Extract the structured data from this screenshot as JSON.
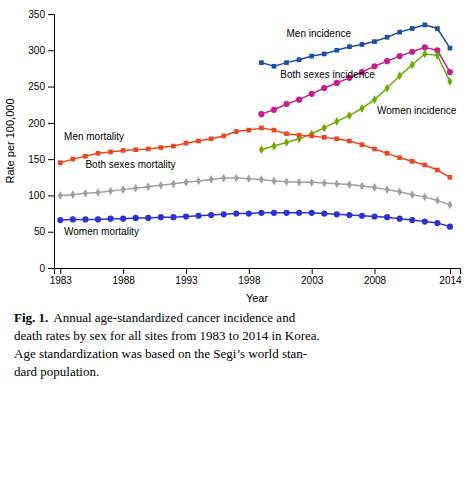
{
  "chart_data": {
    "type": "line",
    "x_label": "Year",
    "y_label": "Rate per 100,000",
    "x": [
      1983,
      1984,
      1985,
      1986,
      1987,
      1988,
      1989,
      1990,
      1991,
      1992,
      1993,
      1994,
      1995,
      1996,
      1997,
      1998,
      1999,
      2000,
      2001,
      2002,
      2003,
      2004,
      2005,
      2006,
      2007,
      2008,
      2009,
      2010,
      2011,
      2012,
      2013,
      2014
    ],
    "series": [
      {
        "color": "#1f4ea1",
        "marker": "square",
        "values": [
          null,
          null,
          null,
          null,
          null,
          null,
          null,
          null,
          null,
          null,
          null,
          null,
          null,
          null,
          null,
          null,
          283,
          278,
          283,
          287,
          292,
          295,
          300,
          305,
          308,
          312,
          318,
          325,
          330,
          335,
          330,
          303
        ]
      },
      {
        "color": "#c41f8a",
        "marker": "circle",
        "values": [
          null,
          null,
          null,
          null,
          null,
          null,
          null,
          null,
          null,
          null,
          null,
          null,
          null,
          null,
          null,
          null,
          212,
          218,
          226,
          232,
          240,
          248,
          255,
          262,
          270,
          278,
          285,
          292,
          298,
          304,
          300,
          270
        ]
      },
      {
        "color": "#6aaa00",
        "marker": "diamond",
        "values": [
          null,
          null,
          null,
          null,
          null,
          null,
          null,
          null,
          null,
          null,
          null,
          null,
          null,
          null,
          null,
          null,
          163,
          168,
          173,
          178,
          185,
          193,
          202,
          210,
          220,
          232,
          248,
          265,
          280,
          295,
          293,
          257
        ]
      },
      {
        "color": "#e84820",
        "marker": "square",
        "values": [
          145,
          150,
          154,
          158,
          160,
          162,
          163,
          164,
          166,
          168,
          172,
          175,
          178,
          182,
          188,
          190,
          193,
          190,
          185,
          183,
          182,
          180,
          178,
          175,
          170,
          164,
          158,
          152,
          147,
          142,
          135,
          125
        ]
      },
      {
        "color": "#a0a0a0",
        "marker": "diamond",
        "values": [
          100,
          101,
          103,
          104,
          106,
          108,
          110,
          112,
          114,
          116,
          118,
          120,
          122,
          124,
          124,
          123,
          122,
          120,
          119,
          118,
          118,
          117,
          116,
          115,
          113,
          111,
          108,
          105,
          101,
          98,
          93,
          87
        ]
      },
      {
        "color": "#3030d0",
        "marker": "circle",
        "values": [
          66,
          67,
          67,
          67,
          68,
          68,
          69,
          69,
          70,
          70,
          71,
          72,
          73,
          74,
          75,
          75,
          76,
          76,
          76,
          76,
          76,
          75,
          74,
          73,
          72,
          71,
          70,
          68,
          66,
          64,
          62,
          57
        ]
      }
    ],
    "xlim": [
      1982.5,
      2014.8
    ],
    "xticks": [
      1983,
      1988,
      1993,
      1998,
      2003,
      2008,
      2014
    ],
    "ylim": [
      0,
      350
    ],
    "yticks": [
      0,
      50,
      100,
      150,
      200,
      250,
      300,
      350
    ],
    "grid": false,
    "annotations": [
      {
        "text": "Men incidence",
        "x": 2001.0,
        "y": 318
      },
      {
        "text": "Both sexes incidence",
        "x": 2000.5,
        "y": 262
      },
      {
        "text": "Women incidence",
        "x": 2008.2,
        "y": 212
      },
      {
        "text": "Men mortality",
        "x": 1983.3,
        "y": 176
      },
      {
        "text": "Both sexes mortality",
        "x": 1985.0,
        "y": 138
      },
      {
        "text": "Women mortality",
        "x": 1983.3,
        "y": 46
      }
    ],
    "caption_label": "Fig. 1.",
    "caption": [
      "Annual age-standardized cancer incidence and",
      "death rates by sex for all sites from 1983 to 2014 in Korea.",
      "Age standardization was based on the Segi’s world stan-",
      "dard population."
    ]
  }
}
